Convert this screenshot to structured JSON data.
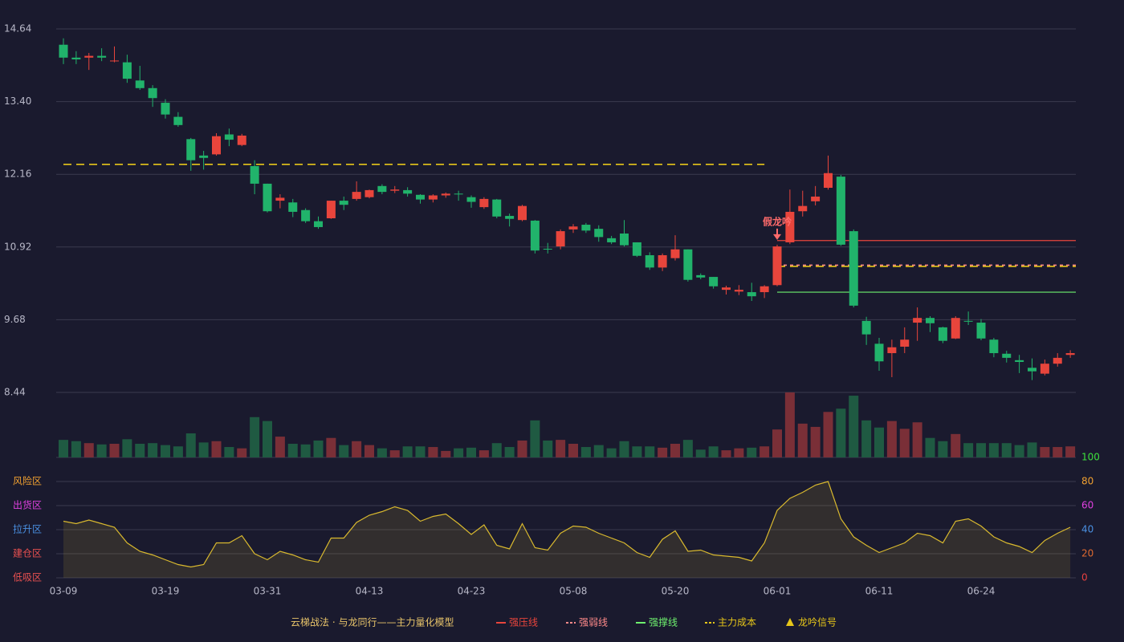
{
  "chart_data": {
    "type": "candlestick",
    "categories": [
      "03-09",
      null,
      null,
      null,
      null,
      null,
      null,
      null,
      "03-19",
      null,
      null,
      null,
      null,
      null,
      null,
      null,
      "03-31",
      null,
      null,
      null,
      null,
      null,
      null,
      null,
      "04-13",
      null,
      null,
      null,
      null,
      null,
      null,
      null,
      "04-23",
      null,
      null,
      null,
      null,
      null,
      null,
      null,
      "05-08",
      null,
      null,
      null,
      null,
      null,
      null,
      null,
      "05-20",
      null,
      null,
      null,
      null,
      null,
      null,
      null,
      "06-01",
      null,
      null,
      null,
      null,
      null,
      null,
      null,
      "06-11",
      null,
      null,
      null,
      null,
      null,
      null,
      null,
      "06-24",
      null,
      null,
      null,
      null,
      null,
      null,
      null
    ],
    "open": [
      14.37,
      14.15,
      14.15,
      14.18,
      14.09,
      14.07,
      13.76,
      13.63,
      13.38,
      13.14,
      12.76,
      12.48,
      12.5,
      12.84,
      12.66,
      12.3,
      12.0,
      11.71,
      11.68,
      11.55,
      11.36,
      11.41,
      11.71,
      11.74,
      11.77,
      11.96,
      11.88,
      11.89,
      11.81,
      11.73,
      11.8,
      11.83,
      11.77,
      11.6,
      11.73,
      11.45,
      11.38,
      11.37,
      10.89,
      10.93,
      11.22,
      11.3,
      11.23,
      11.07,
      11.15,
      11.0,
      10.78,
      10.57,
      10.73,
      10.88,
      10.44,
      10.41,
      10.19,
      10.16,
      10.15,
      10.15,
      10.27,
      11.0,
      11.53,
      11.7,
      11.93,
      12.12,
      11.19,
      9.66,
      9.27,
      9.11,
      9.22,
      9.63,
      9.71,
      9.55,
      9.36,
      9.66,
      9.63,
      9.34,
      9.1,
      8.99,
      8.86,
      8.76,
      8.93,
      9.08
    ],
    "high": [
      14.48,
      14.26,
      14.23,
      14.31,
      14.34,
      14.2,
      14.01,
      13.68,
      13.44,
      13.22,
      12.78,
      12.56,
      12.86,
      12.94,
      12.85,
      12.4,
      12.0,
      11.82,
      11.74,
      11.58,
      11.44,
      11.71,
      11.78,
      12.04,
      11.9,
      11.99,
      11.96,
      11.94,
      11.82,
      11.82,
      11.85,
      11.88,
      11.8,
      11.77,
      11.74,
      11.49,
      11.64,
      11.38,
      10.99,
      11.22,
      11.31,
      11.33,
      11.29,
      11.11,
      11.38,
      11.0,
      10.83,
      10.81,
      11.12,
      10.88,
      10.47,
      10.41,
      10.26,
      10.27,
      10.31,
      10.27,
      10.96,
      11.9,
      11.88,
      11.96,
      12.48,
      12.15,
      11.22,
      9.73,
      9.37,
      9.34,
      9.55,
      9.89,
      9.74,
      9.56,
      9.74,
      9.82,
      9.69,
      9.37,
      9.15,
      9.08,
      9.02,
      9.0,
      9.11,
      9.16
    ],
    "low": [
      14.04,
      14.04,
      13.94,
      14.09,
      14.07,
      13.72,
      13.6,
      13.31,
      13.11,
      12.97,
      12.22,
      12.24,
      12.48,
      12.64,
      12.64,
      11.82,
      11.51,
      11.58,
      11.43,
      11.33,
      11.23,
      11.4,
      11.55,
      11.71,
      11.75,
      11.82,
      11.84,
      11.78,
      11.66,
      11.68,
      11.76,
      11.71,
      11.59,
      11.57,
      11.41,
      11.27,
      11.36,
      10.81,
      10.81,
      10.88,
      11.16,
      11.16,
      11.01,
      10.97,
      10.93,
      10.75,
      10.53,
      10.51,
      10.69,
      10.33,
      10.37,
      10.21,
      10.11,
      10.1,
      10.0,
      10.05,
      10.25,
      10.97,
      11.44,
      11.63,
      11.9,
      10.94,
      9.89,
      9.25,
      8.81,
      8.7,
      9.11,
      9.32,
      9.47,
      9.28,
      9.35,
      9.59,
      9.33,
      9.04,
      8.95,
      8.77,
      8.65,
      8.73,
      8.88,
      9.03
    ],
    "close": [
      14.15,
      14.12,
      14.18,
      14.15,
      14.1,
      13.79,
      13.63,
      13.46,
      13.18,
      13.0,
      12.4,
      12.44,
      12.81,
      12.75,
      12.82,
      12.0,
      11.53,
      11.76,
      11.52,
      11.36,
      11.26,
      11.71,
      11.64,
      11.86,
      11.89,
      11.86,
      11.9,
      11.83,
      11.73,
      11.8,
      11.83,
      11.82,
      11.69,
      11.74,
      11.44,
      11.4,
      11.62,
      10.86,
      10.88,
      11.19,
      11.27,
      11.2,
      11.09,
      11.0,
      10.95,
      10.77,
      10.57,
      10.78,
      10.88,
      10.36,
      10.4,
      10.25,
      10.23,
      10.19,
      10.08,
      10.25,
      10.93,
      11.52,
      11.62,
      11.78,
      12.18,
      10.96,
      9.92,
      9.43,
      8.97,
      9.21,
      9.34,
      9.71,
      9.62,
      9.32,
      9.71,
      9.65,
      9.36,
      9.11,
      9.03,
      8.96,
      8.8,
      8.93,
      9.03,
      9.11
    ],
    "ylim": [
      8.44,
      14.64
    ],
    "yticks": [
      14.64,
      {
        "value": 13.4,
        "label": "13.40"
      },
      12.16,
      10.92,
      9.68,
      8.44
    ],
    "grid": true,
    "up_color": "#e8453c",
    "down_color": "#21b36b",
    "levels": [
      {
        "value": 12.33,
        "start": 0,
        "end": 55,
        "color": "#e6c619",
        "style": "dashed"
      },
      {
        "value": 11.03,
        "start": 56,
        "end": 79,
        "color": "#e8453c",
        "style": "solid"
      },
      {
        "value": 10.61,
        "start": 56,
        "end": 79,
        "color": "#ff8a8a",
        "style": "dotted"
      },
      {
        "value": 10.59,
        "start": 56,
        "end": 79,
        "color": "#e6c619",
        "style": "dashed"
      },
      {
        "value": 10.15,
        "start": 56,
        "end": 79,
        "color": "#6ef06e",
        "style": "solid"
      }
    ],
    "annotations": [
      {
        "text": "假龙吟",
        "index": 56,
        "color": "#ff6b6b"
      }
    ],
    "volume": {
      "values": [
        27,
        25,
        22,
        20,
        21,
        28,
        21,
        22,
        19,
        17,
        37,
        23,
        25,
        16,
        14,
        62,
        56,
        32,
        21,
        20,
        26,
        30,
        19,
        25,
        19,
        14,
        11,
        17,
        17,
        16,
        10,
        14,
        15,
        11,
        22,
        16,
        26,
        57,
        26,
        27,
        21,
        16,
        19,
        14,
        25,
        17,
        17,
        15,
        21,
        27,
        12,
        17,
        11,
        14,
        15,
        17,
        43,
        100,
        52,
        47,
        70,
        75,
        95,
        57,
        46,
        56,
        44,
        54,
        30,
        25,
        36,
        22,
        22,
        22,
        22,
        19,
        23,
        16,
        16,
        17
      ],
      "ylim": [
        0,
        100
      ],
      "up_color": "#7a2f37",
      "down_color": "#1f5a42"
    },
    "indicator": {
      "values": [
        47,
        45,
        48,
        45,
        42,
        29,
        22,
        19,
        15,
        11,
        9,
        11,
        29,
        29,
        35,
        20,
        15,
        22,
        19,
        15,
        13,
        33,
        33,
        46,
        52,
        55,
        59,
        56,
        47,
        51,
        53,
        45,
        36,
        44,
        27,
        24,
        45,
        25,
        23,
        37,
        43,
        42,
        37,
        33,
        29,
        21,
        17,
        32,
        39,
        22,
        23,
        19,
        18,
        17,
        14,
        29,
        56,
        66,
        71,
        77,
        80,
        49,
        34,
        27,
        21,
        25,
        29,
        37,
        35,
        29,
        47,
        49,
        43,
        34,
        29,
        26,
        21,
        31,
        37,
        42
      ],
      "ylim": [
        0,
        100
      ],
      "yticks": [
        0,
        20,
        40,
        60,
        80,
        100
      ],
      "tick_colors": [
        "#e84040",
        "#e06a30",
        "#4a90e2",
        "#e040e0",
        "#f0a030",
        "#3de03d"
      ],
      "zones": [
        {
          "label": "风险区",
          "value": 80,
          "color": "#f0a030"
        },
        {
          "label": "出货区",
          "value": 60,
          "color": "#e040e0"
        },
        {
          "label": "拉升区",
          "value": 40,
          "color": "#4a90e2"
        },
        {
          "label": "建仓区",
          "value": 20,
          "color": "#e85050"
        },
        {
          "label": "低吸区",
          "value": 0,
          "color": "#e85050"
        }
      ],
      "color": "#d9b92e"
    },
    "legend": {
      "title": "云梯战法 · 与龙同行——主力量化模型",
      "items": [
        {
          "name": "强压线",
          "color": "#e8453c",
          "style": "solid"
        },
        {
          "name": "强弱线",
          "color": "#ff8a8a",
          "style": "dotted"
        },
        {
          "name": "强撑线",
          "color": "#6ef06e",
          "style": "solid"
        },
        {
          "name": "主力成本",
          "color": "#e6c619",
          "style": "dashed"
        },
        {
          "name": "龙吟信号",
          "color": "#e6c619",
          "style": "triangle"
        }
      ]
    }
  }
}
